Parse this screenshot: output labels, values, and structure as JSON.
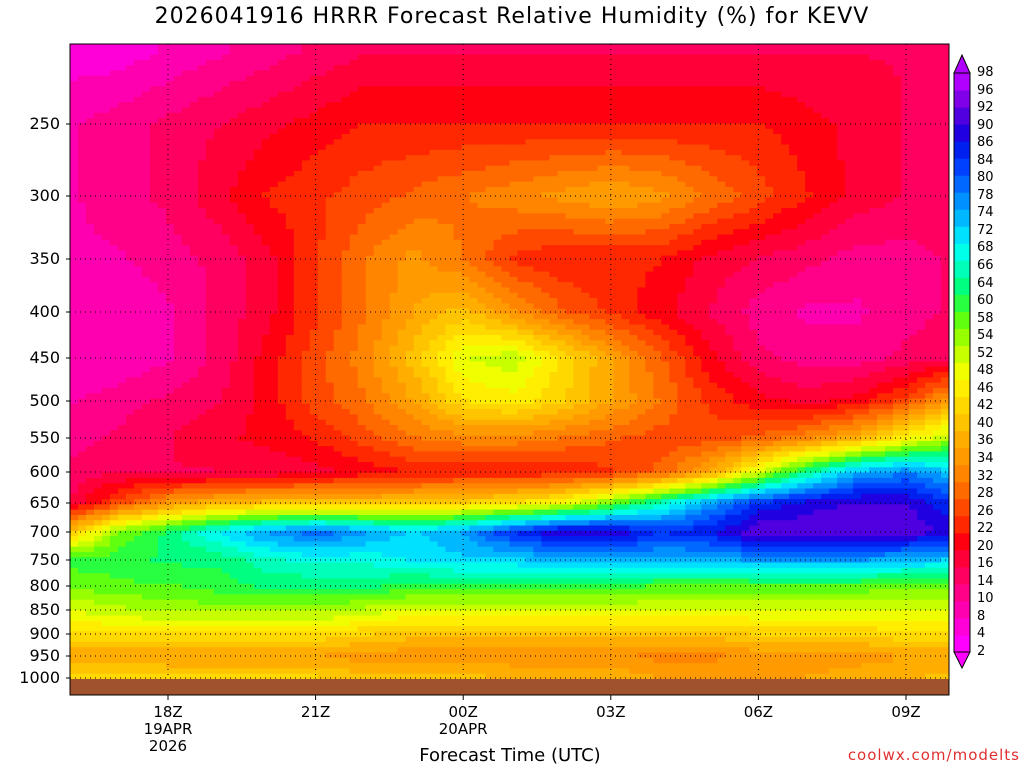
{
  "title": "2026041916 HRRR Forecast Relative Humidity (%) for KEVV",
  "xlabel": "Forecast Time (UTC)",
  "credit": "coolwx.com/modelts",
  "y_ticks": [
    "250",
    "300",
    "350",
    "400",
    "450",
    "500",
    "550",
    "600",
    "650",
    "700",
    "750",
    "800",
    "850",
    "900",
    "950",
    "1000"
  ],
  "x_ticks": [
    {
      "label": "18Z",
      "date": "19APR",
      "year": "2026"
    },
    {
      "label": "21Z",
      "date": "",
      "year": ""
    },
    {
      "label": "00Z",
      "date": "20APR",
      "year": ""
    },
    {
      "label": "03Z",
      "date": "",
      "year": ""
    },
    {
      "label": "06Z",
      "date": "",
      "year": ""
    },
    {
      "label": "09Z",
      "date": "",
      "year": ""
    }
  ],
  "colorbar_labels": [
    "98",
    "96",
    "92",
    "90",
    "86",
    "84",
    "80",
    "78",
    "74",
    "72",
    "68",
    "66",
    "64",
    "60",
    "58",
    "54",
    "52",
    "48",
    "46",
    "42",
    "40",
    "36",
    "34",
    "32",
    "28",
    "26",
    "22",
    "20",
    "16",
    "14",
    "10",
    "8",
    "4",
    "2"
  ],
  "colors": {
    "ground": "#a0522d",
    "gridline": "#000000",
    "credit": "#e03030"
  },
  "chart_data": {
    "type": "heatmap",
    "title": "2026041916 HRRR Forecast Relative Humidity (%) for KEVV",
    "xlabel": "Forecast Time (UTC)",
    "ylabel": "",
    "x_ticks": [
      "18Z 19APR 2026",
      "21Z",
      "00Z 20APR",
      "03Z",
      "06Z",
      "09Z"
    ],
    "y_ticks_hpa": [
      250,
      300,
      350,
      400,
      450,
      500,
      550,
      600,
      650,
      700,
      750,
      800,
      850,
      900,
      950,
      1000
    ],
    "colorbar_range_percent": [
      2,
      98
    ],
    "grid": true,
    "x_hours_utc": [
      16,
      17,
      18,
      19,
      20,
      21,
      22,
      23,
      0,
      1,
      2,
      3,
      4,
      5,
      6,
      7,
      8,
      9,
      10
    ],
    "levels_hpa": [
      200,
      250,
      300,
      350,
      400,
      450,
      500,
      550,
      600,
      650,
      700,
      750,
      800,
      850,
      900,
      950,
      1000
    ],
    "rh_percent": [
      [
        6,
        6,
        8,
        10,
        12,
        14,
        16,
        16,
        16,
        16,
        16,
        16,
        16,
        16,
        16,
        16,
        16,
        16,
        16
      ],
      [
        10,
        12,
        14,
        16,
        18,
        20,
        22,
        22,
        22,
        22,
        22,
        22,
        22,
        22,
        22,
        20,
        18,
        16,
        14
      ],
      [
        10,
        12,
        14,
        18,
        22,
        24,
        26,
        28,
        30,
        32,
        34,
        36,
        34,
        30,
        26,
        22,
        18,
        16,
        14
      ],
      [
        10,
        10,
        12,
        14,
        18,
        24,
        30,
        34,
        30,
        24,
        22,
        22,
        22,
        18,
        16,
        14,
        12,
        12,
        14
      ],
      [
        8,
        8,
        10,
        14,
        18,
        24,
        30,
        36,
        40,
        34,
        28,
        24,
        20,
        16,
        12,
        10,
        10,
        12,
        14
      ],
      [
        8,
        8,
        10,
        14,
        20,
        26,
        32,
        40,
        50,
        52,
        44,
        36,
        28,
        20,
        14,
        12,
        12,
        14,
        16
      ],
      [
        10,
        12,
        14,
        16,
        20,
        26,
        30,
        36,
        44,
        46,
        42,
        36,
        30,
        24,
        20,
        18,
        20,
        26,
        36
      ],
      [
        12,
        14,
        16,
        18,
        20,
        22,
        26,
        30,
        32,
        32,
        30,
        28,
        26,
        26,
        28,
        32,
        38,
        46,
        54
      ],
      [
        14,
        16,
        16,
        16,
        16,
        18,
        20,
        22,
        22,
        22,
        22,
        24,
        28,
        36,
        50,
        64,
        74,
        78,
        72
      ],
      [
        16,
        26,
        34,
        38,
        40,
        40,
        40,
        40,
        42,
        44,
        48,
        56,
        66,
        76,
        84,
        88,
        90,
        90,
        84
      ],
      [
        40,
        56,
        62,
        70,
        76,
        80,
        76,
        72,
        76,
        84,
        90,
        90,
        84,
        86,
        92,
        92,
        92,
        92,
        88
      ],
      [
        60,
        60,
        62,
        62,
        66,
        68,
        68,
        70,
        72,
        72,
        74,
        74,
        74,
        74,
        76,
        76,
        76,
        74,
        72
      ],
      [
        56,
        58,
        58,
        60,
        62,
        62,
        62,
        60,
        60,
        60,
        60,
        60,
        58,
        58,
        58,
        58,
        58,
        56,
        56
      ],
      [
        50,
        52,
        54,
        54,
        54,
        54,
        52,
        50,
        50,
        50,
        50,
        50,
        50,
        50,
        50,
        50,
        50,
        50,
        50
      ],
      [
        44,
        44,
        44,
        44,
        44,
        44,
        42,
        40,
        40,
        40,
        40,
        40,
        40,
        40,
        42,
        42,
        42,
        44,
        44
      ],
      [
        36,
        36,
        36,
        36,
        36,
        36,
        34,
        34,
        34,
        34,
        34,
        34,
        32,
        32,
        34,
        34,
        34,
        36,
        36
      ],
      [
        44,
        44,
        42,
        42,
        42,
        42,
        40,
        40,
        40,
        38,
        38,
        38,
        36,
        36,
        36,
        36,
        38,
        38,
        40
      ]
    ]
  }
}
